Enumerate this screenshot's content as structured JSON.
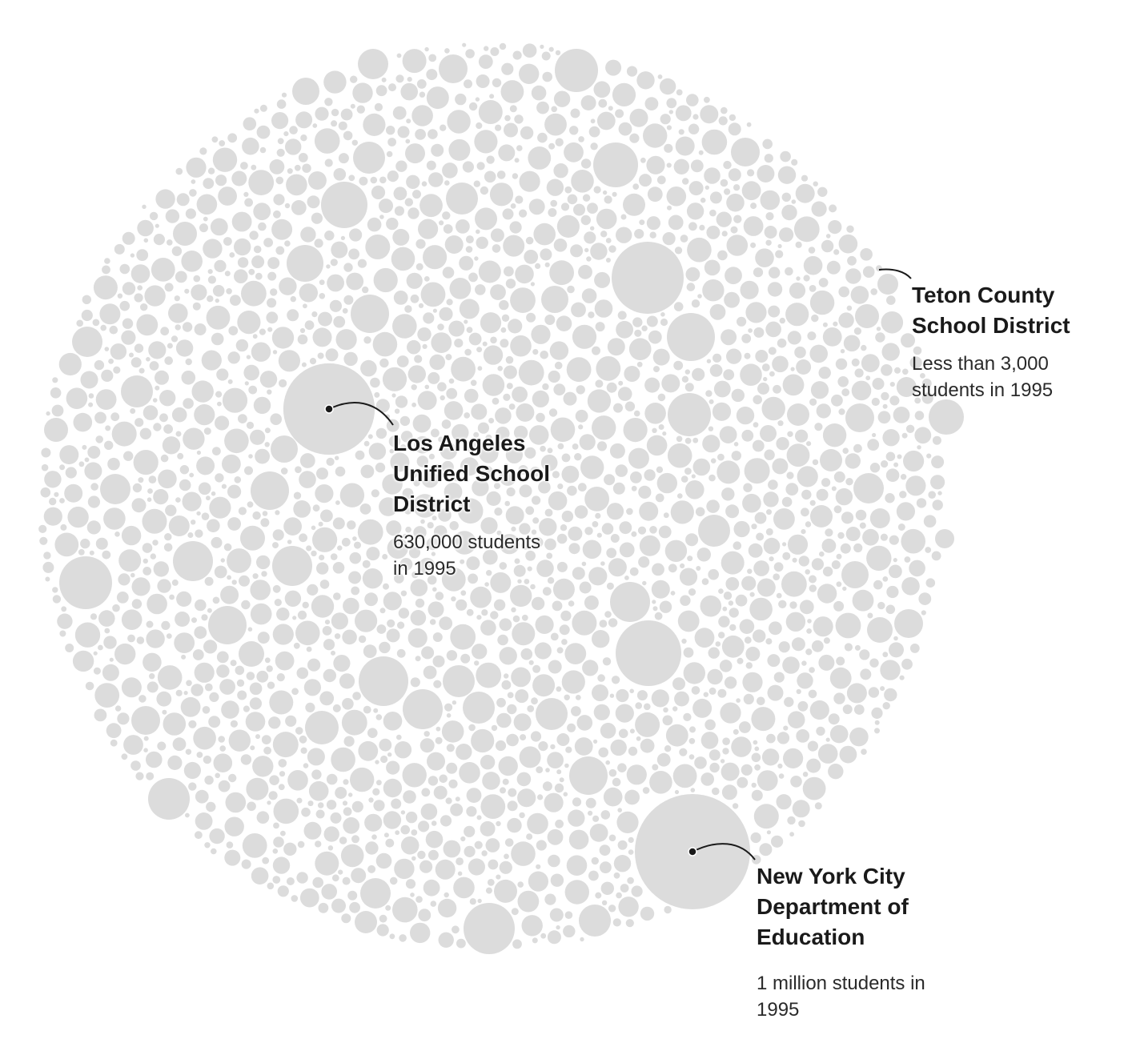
{
  "chart_data": {
    "type": "bubble-pack",
    "metric": "students in 1995",
    "bubble_color": "#dcdcdc",
    "label_color": "#1a1a1a",
    "highlighted": [
      {
        "id": "nyc",
        "name": "New York City\nDepartment of\nEducation",
        "value": 1000000,
        "value_label": "1 million students in\n1995"
      },
      {
        "id": "la",
        "name": "Los Angeles\nUnified School\nDistrict",
        "value": 630000,
        "value_label": "630,000 students\nin 1995"
      },
      {
        "id": "teton",
        "name": "Teton County\nSchool District",
        "value": 3000,
        "value_label": "Less than 3,000\nstudents in 1995"
      }
    ]
  }
}
